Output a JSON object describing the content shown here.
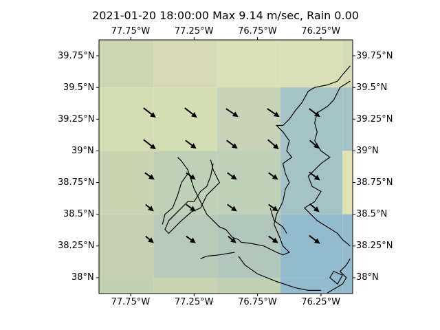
{
  "title": "2021-01-20 18:00:00 Max 9.14 m/sec, Rain 0.00",
  "map": {
    "lon_range": [
      -78.0,
      -76.0
    ],
    "lat_range": [
      37.875,
      39.875
    ],
    "lon_ticks": [
      {
        "value": -77.75,
        "label": "77.75°W"
      },
      {
        "value": -77.25,
        "label": "77.25°W"
      },
      {
        "value": -76.75,
        "label": "76.75°W"
      },
      {
        "value": -76.25,
        "label": "76.25°W"
      }
    ],
    "lat_ticks": [
      {
        "value": 39.75,
        "label": "39.75°N"
      },
      {
        "value": 39.5,
        "label": "39.5°N"
      },
      {
        "value": 39.25,
        "label": "39.25°N"
      },
      {
        "value": 39.0,
        "label": "39°N"
      },
      {
        "value": 38.75,
        "label": "38.75°N"
      },
      {
        "value": 38.5,
        "label": "38.5°N"
      },
      {
        "value": 38.25,
        "label": "38.25°N"
      },
      {
        "value": 38.0,
        "label": "38°N"
      }
    ],
    "grid_lon_edges": [
      -78.0,
      -77.57,
      -77.07,
      -76.57,
      -76.08,
      -76.0
    ],
    "grid_lat_edges": [
      39.875,
      39.5,
      39.0,
      38.5,
      38.0,
      37.875
    ],
    "cell_colors": [
      [
        "#cdd6b3",
        "#d5dab4",
        "#d9dfb6",
        "#d9dfb6",
        "#d3dab6"
      ],
      [
        "#d4dcb3",
        "#d5ddb2",
        "#c6d3b6",
        "#a4c3c6",
        "#a4c3c6"
      ],
      [
        "#c9d4b3",
        "#bed0b5",
        "#bed0b5",
        "#a5c3c7",
        "#e1e2b4"
      ],
      [
        "#c4d0b2",
        "#b7cab7",
        "#b1c6bc",
        "#92bccd",
        "#92bccd"
      ],
      [
        "#c1cfb2",
        "#c7d3b1",
        "#c1cfb2",
        "#92bccd",
        "#92bccd"
      ]
    ],
    "wind_vectors": [
      {
        "lon": -77.6,
        "lat": 39.3,
        "u": 0.9,
        "v": -0.7
      },
      {
        "lon": -77.275,
        "lat": 39.3,
        "u": 0.9,
        "v": -0.7
      },
      {
        "lon": -76.95,
        "lat": 39.3,
        "u": 0.9,
        "v": -0.6
      },
      {
        "lon": -76.625,
        "lat": 39.3,
        "u": 0.9,
        "v": -0.6
      },
      {
        "lon": -76.3,
        "lat": 39.3,
        "u": 0.8,
        "v": -0.6
      },
      {
        "lon": -77.6,
        "lat": 39.05,
        "u": 0.9,
        "v": -0.7
      },
      {
        "lon": -77.275,
        "lat": 39.05,
        "u": 0.8,
        "v": -0.6
      },
      {
        "lon": -76.95,
        "lat": 39.05,
        "u": 0.8,
        "v": -0.6
      },
      {
        "lon": -76.625,
        "lat": 39.05,
        "u": 0.8,
        "v": -0.7
      },
      {
        "lon": -76.3,
        "lat": 39.05,
        "u": 0.7,
        "v": -0.6
      },
      {
        "lon": -77.6,
        "lat": 38.8,
        "u": 0.7,
        "v": -0.5
      },
      {
        "lon": -77.275,
        "lat": 38.8,
        "u": 0.7,
        "v": -0.5
      },
      {
        "lon": -76.95,
        "lat": 38.8,
        "u": 0.7,
        "v": -0.5
      },
      {
        "lon": -76.625,
        "lat": 38.8,
        "u": 0.7,
        "v": -0.5
      },
      {
        "lon": -76.3,
        "lat": 38.8,
        "u": 0.8,
        "v": -0.6
      },
      {
        "lon": -77.6,
        "lat": 38.55,
        "u": 0.6,
        "v": -0.5
      },
      {
        "lon": -77.275,
        "lat": 38.55,
        "u": 0.7,
        "v": -0.5
      },
      {
        "lon": -76.95,
        "lat": 38.55,
        "u": 0.7,
        "v": -0.5
      },
      {
        "lon": -76.625,
        "lat": 38.55,
        "u": 0.7,
        "v": -0.5
      },
      {
        "lon": -76.3,
        "lat": 38.55,
        "u": 0.7,
        "v": -0.6
      },
      {
        "lon": -77.6,
        "lat": 38.3,
        "u": 0.6,
        "v": -0.5
      },
      {
        "lon": -77.275,
        "lat": 38.3,
        "u": 0.7,
        "v": -0.5
      },
      {
        "lon": -76.95,
        "lat": 38.3,
        "u": 0.6,
        "v": -0.5
      },
      {
        "lon": -76.625,
        "lat": 38.3,
        "u": 0.7,
        "v": -0.5
      },
      {
        "lon": -76.3,
        "lat": 38.3,
        "u": 0.8,
        "v": -0.6
      }
    ],
    "coastlines": [
      [
        [
          -76.02,
          39.67
        ],
        [
          -76.08,
          39.6
        ],
        [
          -76.12,
          39.55
        ],
        [
          -76.2,
          39.52
        ],
        [
          -76.3,
          39.5
        ],
        [
          -76.35,
          39.47
        ],
        [
          -76.4,
          39.38
        ],
        [
          -76.45,
          39.32
        ],
        [
          -76.5,
          39.25
        ],
        [
          -76.55,
          39.2
        ],
        [
          -76.6,
          39.2
        ],
        [
          -76.55,
          39.15
        ],
        [
          -76.5,
          39.08
        ],
        [
          -76.52,
          39.0
        ],
        [
          -76.48,
          38.95
        ],
        [
          -76.55,
          38.9
        ],
        [
          -76.53,
          38.82
        ],
        [
          -76.5,
          38.75
        ],
        [
          -76.53,
          38.7
        ],
        [
          -76.55,
          38.6
        ],
        [
          -76.6,
          38.5
        ],
        [
          -76.62,
          38.42
        ],
        [
          -76.58,
          38.33
        ],
        [
          -76.55,
          38.25
        ],
        [
          -76.5,
          38.2
        ],
        [
          -76.55,
          38.18
        ],
        [
          -76.6,
          38.2
        ],
        [
          -76.7,
          38.25
        ],
        [
          -76.8,
          38.27
        ],
        [
          -76.88,
          38.28
        ],
        [
          -76.9,
          38.3
        ],
        [
          -76.95,
          38.32
        ],
        [
          -77.0,
          38.38
        ],
        [
          -77.05,
          38.4
        ],
        [
          -77.1,
          38.45
        ],
        [
          -77.15,
          38.5
        ],
        [
          -77.2,
          38.6
        ],
        [
          -77.25,
          38.7
        ],
        [
          -77.3,
          38.85
        ],
        [
          -77.35,
          38.92
        ],
        [
          -77.38,
          38.95
        ]
      ],
      [
        [
          -77.12,
          38.93
        ],
        [
          -77.1,
          38.85
        ],
        [
          -77.05,
          38.75
        ],
        [
          -77.15,
          38.65
        ],
        [
          -77.2,
          38.55
        ],
        [
          -77.27,
          38.52
        ],
        [
          -77.35,
          38.45
        ],
        [
          -77.42,
          38.38
        ],
        [
          -77.45,
          38.35
        ],
        [
          -77.48,
          38.38
        ],
        [
          -77.45,
          38.45
        ],
        [
          -77.35,
          38.55
        ],
        [
          -77.3,
          38.6
        ],
        [
          -77.25,
          38.6
        ],
        [
          -77.2,
          38.68
        ],
        [
          -77.15,
          38.72
        ],
        [
          -77.12,
          38.8
        ],
        [
          -77.1,
          38.9
        ]
      ],
      [
        [
          -76.93,
          38.2
        ],
        [
          -77.05,
          38.18
        ],
        [
          -77.15,
          38.17
        ],
        [
          -77.2,
          38.15
        ]
      ],
      [
        [
          -76.9,
          38.17
        ],
        [
          -76.85,
          38.1
        ],
        [
          -76.75,
          38.03
        ],
        [
          -76.6,
          37.97
        ],
        [
          -76.45,
          37.92
        ],
        [
          -76.35,
          37.9
        ],
        [
          -76.25,
          37.9
        ]
      ],
      [
        [
          -76.2,
          37.88
        ],
        [
          -76.08,
          37.95
        ],
        [
          -76.05,
          38.0
        ],
        [
          -76.1,
          38.05
        ],
        [
          -76.05,
          38.1
        ],
        [
          -76.02,
          38.15
        ]
      ],
      [
        [
          -76.02,
          39.55
        ],
        [
          -76.1,
          39.5
        ],
        [
          -76.15,
          39.4
        ],
        [
          -76.2,
          39.35
        ],
        [
          -76.28,
          39.3
        ],
        [
          -76.3,
          39.22
        ],
        [
          -76.28,
          39.15
        ],
        [
          -76.3,
          39.08
        ],
        [
          -76.25,
          39.0
        ],
        [
          -76.18,
          38.95
        ],
        [
          -76.25,
          38.9
        ],
        [
          -76.3,
          38.85
        ],
        [
          -76.35,
          38.8
        ],
        [
          -76.32,
          38.72
        ],
        [
          -76.25,
          38.68
        ],
        [
          -76.3,
          38.6
        ],
        [
          -76.38,
          38.55
        ],
        [
          -76.33,
          38.5
        ],
        [
          -76.28,
          38.45
        ],
        [
          -76.2,
          38.4
        ],
        [
          -76.12,
          38.35
        ],
        [
          -76.08,
          38.3
        ],
        [
          -76.02,
          38.25
        ]
      ],
      [
        [
          -76.08,
          38.02
        ],
        [
          -76.15,
          38.05
        ],
        [
          -76.18,
          38.0
        ],
        [
          -76.12,
          37.95
        ],
        [
          -76.08,
          38.02
        ]
      ],
      [
        [
          -76.65,
          38.55
        ],
        [
          -76.62,
          38.45
        ],
        [
          -76.55,
          38.4
        ],
        [
          -76.52,
          38.35
        ]
      ],
      [
        [
          -77.3,
          38.82
        ],
        [
          -77.35,
          38.75
        ],
        [
          -77.38,
          38.65
        ],
        [
          -77.42,
          38.55
        ],
        [
          -77.48,
          38.5
        ],
        [
          -77.5,
          38.42
        ]
      ]
    ]
  }
}
